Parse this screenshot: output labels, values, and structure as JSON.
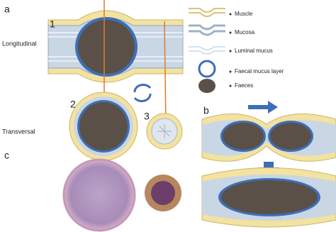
{
  "panels": {
    "a": {
      "label": "a",
      "views": [
        {
          "number": "1",
          "label": "Longitudinal"
        },
        {
          "number": "2",
          "label": "Transversal"
        },
        {
          "number": "3"
        }
      ]
    },
    "b": {
      "label": "b"
    },
    "c": {
      "label": "c"
    }
  },
  "legend": {
    "items": [
      "Muscle",
      "Mucosa",
      "Luminal mucus",
      "Faecal mucus layer",
      "Faeces"
    ]
  }
}
